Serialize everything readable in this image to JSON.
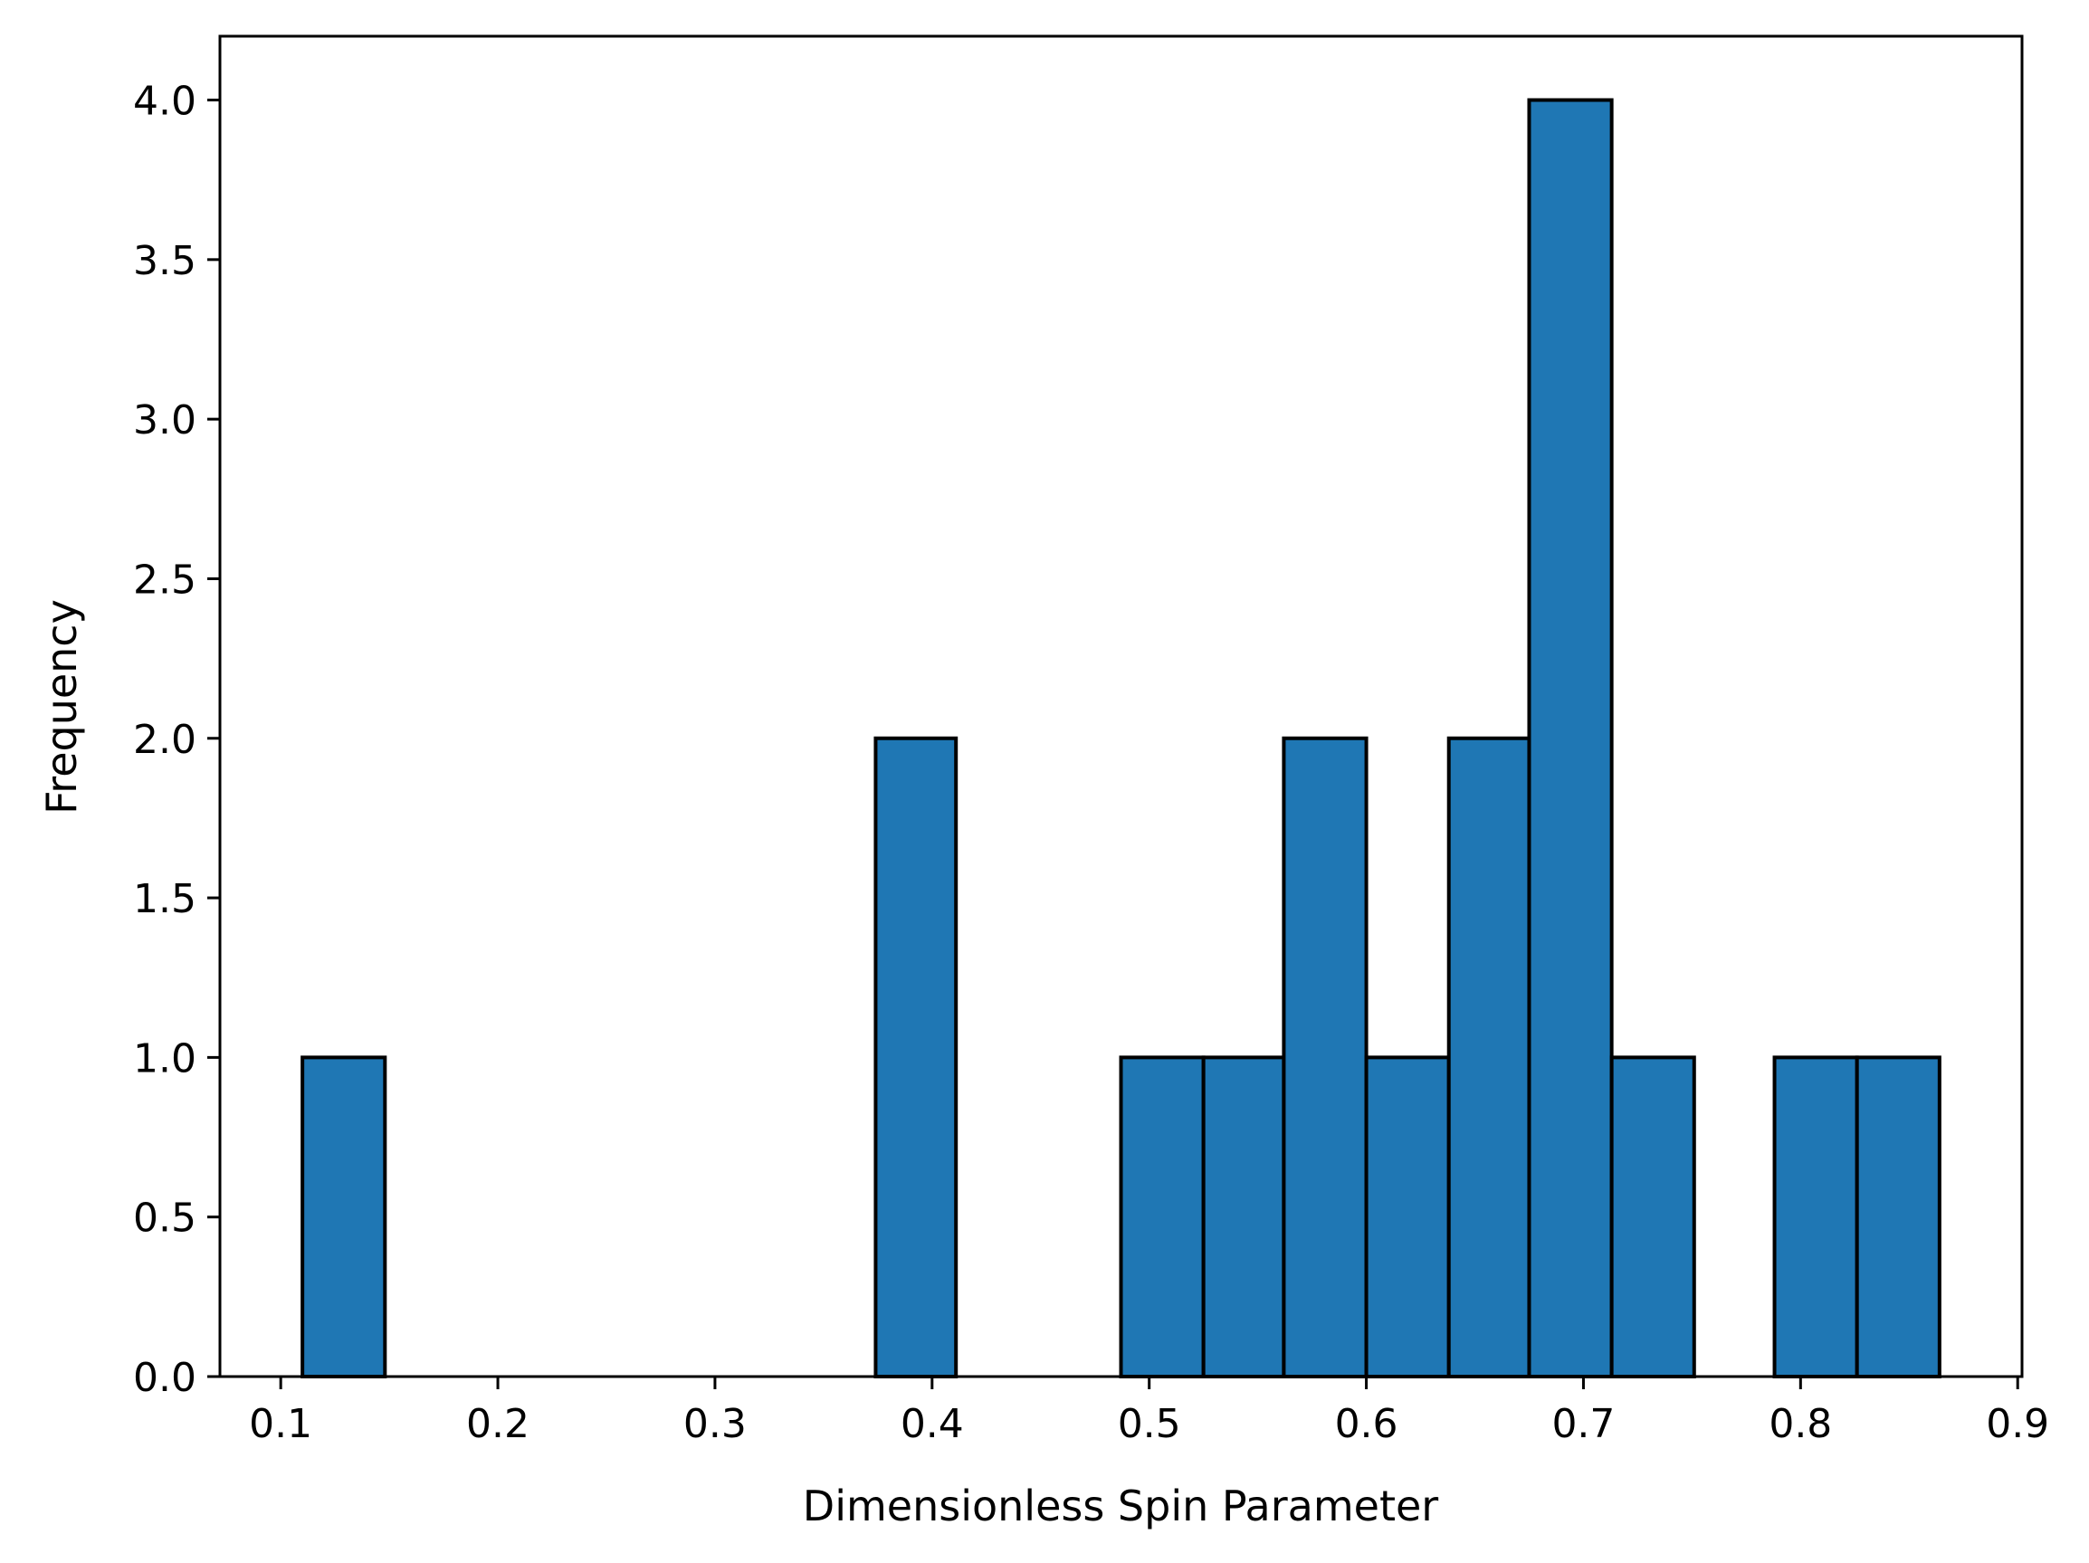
{
  "chart_data": {
    "type": "bar",
    "subtype": "histogram",
    "title": "",
    "xlabel": "Dimensionless Spin Parameter",
    "ylabel": "Frequency",
    "xlim": [
      0.072,
      0.902
    ],
    "ylim": [
      0,
      4.2
    ],
    "xticks": [
      "0.1",
      "0.2",
      "0.3",
      "0.4",
      "0.5",
      "0.6",
      "0.7",
      "0.8",
      "0.9"
    ],
    "yticks": [
      "0.0",
      "0.5",
      "1.0",
      "1.5",
      "2.0",
      "2.5",
      "3.0",
      "3.5",
      "4.0"
    ],
    "bin_edges": [
      0.11,
      0.148,
      0.185,
      0.223,
      0.261,
      0.298,
      0.336,
      0.374,
      0.411,
      0.449,
      0.487,
      0.525,
      0.562,
      0.6,
      0.638,
      0.675,
      0.713,
      0.751,
      0.788,
      0.826,
      0.864
    ],
    "values": [
      1,
      0,
      0,
      0,
      0,
      0,
      0,
      2,
      0,
      0,
      1,
      1,
      2,
      1,
      2,
      4,
      1,
      0,
      1,
      1
    ],
    "colors": {
      "bar_fill": "#1f77b4",
      "bar_edge": "#000000"
    },
    "grid": false,
    "legend": "none"
  }
}
